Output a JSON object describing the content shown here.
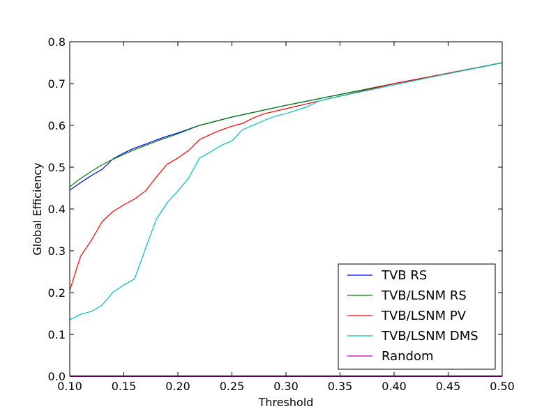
{
  "chart_data": {
    "type": "line",
    "title": "",
    "xlabel": "Threshold",
    "ylabel": "Global Efficiency",
    "xlim": [
      0.1,
      0.5
    ],
    "ylim": [
      0.0,
      0.8
    ],
    "xticks": [
      "0.10",
      "0.15",
      "0.20",
      "0.25",
      "0.30",
      "0.35",
      "0.40",
      "0.45",
      "0.50"
    ],
    "yticks": [
      "0.0",
      "0.1",
      "0.2",
      "0.3",
      "0.4",
      "0.5",
      "0.6",
      "0.7",
      "0.8"
    ],
    "grid": false,
    "legend_position": "bottom-right",
    "series": [
      {
        "name": "TVB RS",
        "color": "#0000ff",
        "x": [
          0.1,
          0.11,
          0.12,
          0.13,
          0.14,
          0.15,
          0.16,
          0.17,
          0.18,
          0.19,
          0.2,
          0.22,
          0.25,
          0.3,
          0.35,
          0.4,
          0.45,
          0.5
        ],
        "y": [
          0.445,
          0.463,
          0.48,
          0.495,
          0.52,
          0.534,
          0.546,
          0.555,
          0.565,
          0.574,
          0.582,
          0.6,
          0.62,
          0.648,
          0.674,
          0.7,
          0.724,
          0.75
        ]
      },
      {
        "name": "TVB/LSNM RS",
        "color": "#008000",
        "x": [
          0.1,
          0.11,
          0.12,
          0.13,
          0.14,
          0.15,
          0.16,
          0.17,
          0.18,
          0.19,
          0.2,
          0.22,
          0.25,
          0.3,
          0.35,
          0.4,
          0.45,
          0.5
        ],
        "y": [
          0.453,
          0.473,
          0.49,
          0.506,
          0.519,
          0.531,
          0.542,
          0.552,
          0.562,
          0.571,
          0.58,
          0.6,
          0.62,
          0.648,
          0.674,
          0.7,
          0.724,
          0.75
        ]
      },
      {
        "name": "TVB/LSNM PV",
        "color": "#ff0000",
        "x": [
          0.1,
          0.11,
          0.12,
          0.13,
          0.14,
          0.15,
          0.16,
          0.17,
          0.18,
          0.19,
          0.2,
          0.21,
          0.22,
          0.23,
          0.24,
          0.25,
          0.26,
          0.27,
          0.28,
          0.3,
          0.32,
          0.35,
          0.4,
          0.45,
          0.5
        ],
        "y": [
          0.205,
          0.287,
          0.325,
          0.37,
          0.394,
          0.41,
          0.424,
          0.443,
          0.476,
          0.507,
          0.522,
          0.54,
          0.566,
          0.578,
          0.589,
          0.598,
          0.605,
          0.618,
          0.628,
          0.64,
          0.652,
          0.67,
          0.7,
          0.725,
          0.75
        ]
      },
      {
        "name": "TVB/LSNM DMS",
        "color": "#00bfbf",
        "x": [
          0.1,
          0.11,
          0.12,
          0.13,
          0.14,
          0.15,
          0.16,
          0.17,
          0.18,
          0.19,
          0.2,
          0.21,
          0.22,
          0.23,
          0.24,
          0.25,
          0.26,
          0.27,
          0.28,
          0.29,
          0.3,
          0.32,
          0.33,
          0.35,
          0.4,
          0.45,
          0.5
        ],
        "y": [
          0.135,
          0.148,
          0.155,
          0.17,
          0.201,
          0.218,
          0.233,
          0.305,
          0.375,
          0.415,
          0.443,
          0.474,
          0.522,
          0.536,
          0.552,
          0.563,
          0.59,
          0.601,
          0.612,
          0.622,
          0.628,
          0.645,
          0.658,
          0.67,
          0.697,
          0.724,
          0.75
        ]
      },
      {
        "name": "Random",
        "color": "#bf00bf",
        "x": [
          0.1,
          0.5
        ],
        "y": [
          0.0,
          0.0
        ]
      }
    ]
  }
}
